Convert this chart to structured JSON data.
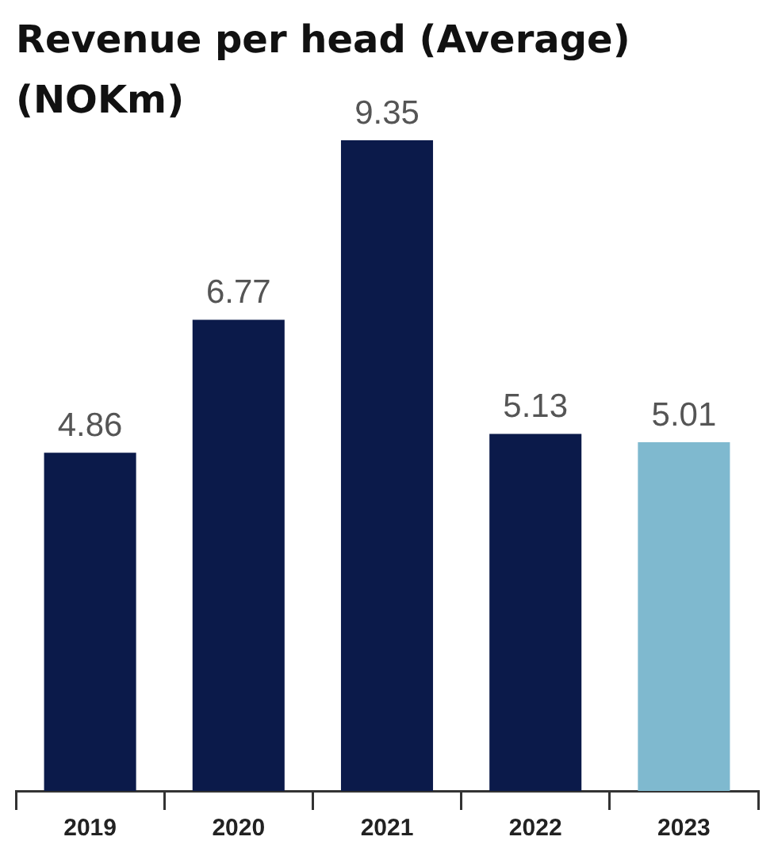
{
  "chart_data": {
    "type": "bar",
    "title": "Revenue per head (Average) (NOKm)",
    "categories": [
      "2019",
      "2020",
      "2021",
      "2022",
      "2023"
    ],
    "values": [
      4.86,
      6.77,
      9.35,
      5.13,
      5.01
    ],
    "colors": [
      "#0b1a4a",
      "#0b1a4a",
      "#0b1a4a",
      "#0b1a4a",
      "#7fb9cf"
    ],
    "data_labels": true,
    "grid": false,
    "legend": false
  }
}
